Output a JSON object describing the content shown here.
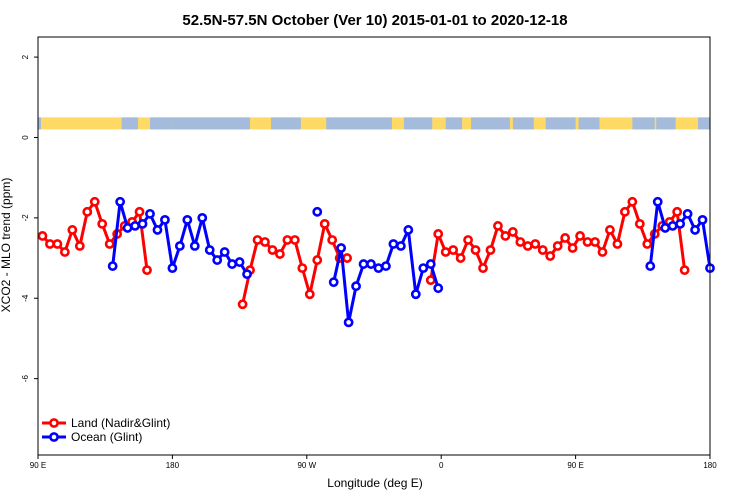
{
  "chart_data": {
    "type": "line",
    "title": "52.5N-57.5N October (Ver 10)   2015-01-01 to 2020-12-18",
    "xlabel": "Longitude (deg E)",
    "ylabel": "XCO2 - MLO trend (ppm)",
    "xlim": [
      90,
      540
    ],
    "ylim": [
      -7.9,
      2.5
    ],
    "x_ticks": [
      {
        "value": 90,
        "label": "90 E"
      },
      {
        "value": 180,
        "label": "180"
      },
      {
        "value": 270,
        "label": "90 W"
      },
      {
        "value": 360,
        "label": "0"
      },
      {
        "value": 450,
        "label": "90 E"
      },
      {
        "value": 540,
        "label": "180"
      }
    ],
    "y_ticks": [
      {
        "value": 2,
        "label": "2"
      },
      {
        "value": 0,
        "label": "0"
      },
      {
        "value": -2,
        "label": "-2"
      },
      {
        "value": -4,
        "label": "-4"
      },
      {
        "value": -6,
        "label": "-6"
      }
    ],
    "grid": false,
    "legend_position": "bottom-left",
    "land_ocean_band": {
      "y_range": [
        0.2,
        0.5
      ],
      "land_color": "#FFD966",
      "ocean_color": "#A4BBDB"
    },
    "series": [
      {
        "name": "Land (Nadir&Glint)",
        "color": "#FF0000",
        "segments": [
          [
            [
              93,
              -2.45
            ],
            [
              98,
              -2.65
            ],
            [
              103,
              -2.65
            ],
            [
              108,
              -2.85
            ],
            [
              113,
              -2.3
            ],
            [
              118,
              -2.7
            ],
            [
              123,
              -1.85
            ],
            [
              128,
              -1.6
            ],
            [
              133,
              -2.15
            ],
            [
              138,
              -2.65
            ],
            [
              143,
              -2.4
            ],
            [
              148,
              -2.2
            ],
            [
              153,
              -2.1
            ],
            [
              158,
              -1.85
            ],
            [
              163,
              -3.3
            ]
          ],
          [
            [
              227,
              -4.15
            ],
            [
              232,
              -3.3
            ],
            [
              237,
              -2.55
            ],
            [
              242,
              -2.6
            ],
            [
              247,
              -2.8
            ],
            [
              252,
              -2.9
            ],
            [
              257,
              -2.55
            ],
            [
              262,
              -2.55
            ],
            [
              267,
              -3.25
            ],
            [
              272,
              -3.9
            ],
            [
              277,
              -3.05
            ],
            [
              282,
              -2.15
            ],
            [
              287,
              -2.55
            ],
            [
              292,
              -3.0
            ],
            [
              297,
              -3.0
            ]
          ],
          [
            [
              353,
              -3.55
            ],
            [
              358,
              -2.4
            ],
            [
              363,
              -2.85
            ],
            [
              368,
              -2.8
            ],
            [
              373,
              -3.0
            ],
            [
              378,
              -2.55
            ],
            [
              383,
              -2.8
            ],
            [
              388,
              -3.25
            ],
            [
              393,
              -2.8
            ],
            [
              398,
              -2.2
            ],
            [
              403,
              -2.45
            ],
            [
              408,
              -2.35
            ],
            [
              413,
              -2.6
            ],
            [
              418,
              -2.7
            ],
            [
              423,
              -2.65
            ],
            [
              428,
              -2.8
            ],
            [
              433,
              -2.95
            ],
            [
              438,
              -2.7
            ],
            [
              443,
              -2.5
            ],
            [
              448,
              -2.75
            ],
            [
              453,
              -2.45
            ],
            [
              458,
              -2.6
            ],
            [
              463,
              -2.6
            ],
            [
              468,
              -2.85
            ],
            [
              473,
              -2.3
            ],
            [
              478,
              -2.65
            ],
            [
              483,
              -1.85
            ],
            [
              488,
              -1.6
            ],
            [
              493,
              -2.15
            ],
            [
              498,
              -2.65
            ],
            [
              503,
              -2.4
            ],
            [
              508,
              -2.2
            ],
            [
              513,
              -2.1
            ],
            [
              518,
              -1.85
            ],
            [
              523,
              -3.3
            ]
          ]
        ]
      },
      {
        "name": "Ocean (Glint)",
        "color": "#0000FF",
        "segments": [
          [
            [
              140,
              -3.2
            ],
            [
              145,
              -1.6
            ],
            [
              150,
              -2.25
            ],
            [
              155,
              -2.2
            ],
            [
              160,
              -2.15
            ],
            [
              165,
              -1.9
            ],
            [
              170,
              -2.3
            ],
            [
              175,
              -2.05
            ],
            [
              180,
              -3.25
            ],
            [
              185,
              -2.7
            ],
            [
              190,
              -2.05
            ],
            [
              195,
              -2.7
            ],
            [
              200,
              -2.0
            ],
            [
              205,
              -2.8
            ],
            [
              210,
              -3.05
            ],
            [
              215,
              -2.85
            ],
            [
              220,
              -3.15
            ],
            [
              225,
              -3.1
            ],
            [
              230,
              -3.4
            ]
          ],
          [
            [
              277,
              -1.85
            ]
          ],
          [
            [
              288,
              -3.6
            ],
            [
              293,
              -2.75
            ],
            [
              298,
              -4.6
            ],
            [
              303,
              -3.7
            ],
            [
              308,
              -3.15
            ],
            [
              313,
              -3.15
            ],
            [
              318,
              -3.25
            ],
            [
              323,
              -3.2
            ],
            [
              328,
              -2.65
            ],
            [
              333,
              -2.7
            ],
            [
              338,
              -2.3
            ],
            [
              343,
              -3.9
            ],
            [
              348,
              -3.25
            ],
            [
              353,
              -3.15
            ],
            [
              358,
              -3.75
            ]
          ],
          [
            [
              500,
              -3.2
            ],
            [
              505,
              -1.6
            ],
            [
              510,
              -2.25
            ],
            [
              515,
              -2.2
            ],
            [
              520,
              -2.15
            ],
            [
              525,
              -1.9
            ],
            [
              530,
              -2.3
            ],
            [
              535,
              -2.05
            ],
            [
              540,
              -3.25
            ]
          ]
        ]
      }
    ]
  }
}
